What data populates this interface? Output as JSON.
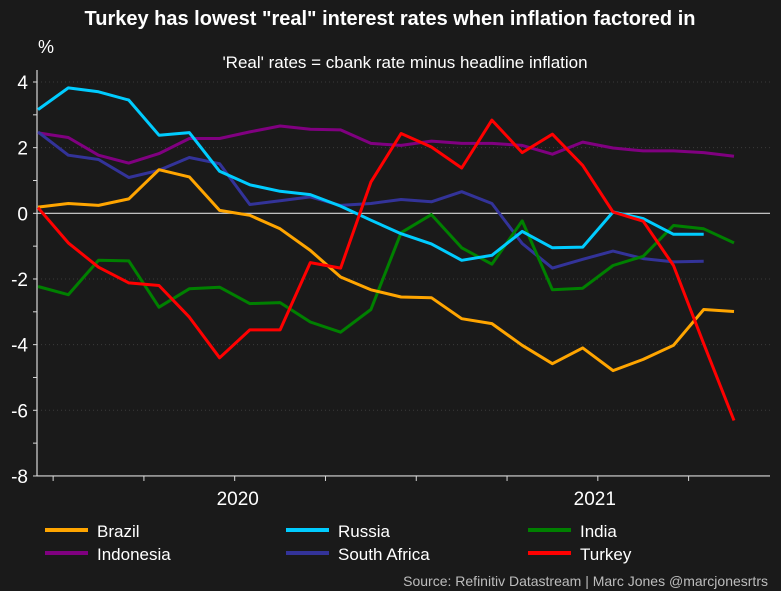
{
  "chart_data": {
    "type": "line",
    "title": "Turkey has lowest \"real\" interest rates when inflation factored in",
    "subtitle": "'Real' rates = cbank rate minus headline inflation",
    "ylabel": "%",
    "xlabel": "",
    "ylim": [
      -8,
      4
    ],
    "yticks": [
      4,
      2,
      0,
      -2,
      -4,
      -6,
      -8
    ],
    "xtick_labels": [
      "2020",
      "2021"
    ],
    "grid": "horizontal dotted",
    "legend_position": "bottom",
    "x": [
      "Jun 2019",
      "Jul 2019",
      "Aug 2019",
      "Sep 2019",
      "Oct 2019",
      "Nov 2019",
      "Dec 2019",
      "Jan 2020",
      "Feb 2020",
      "Mar 2020",
      "Apr 2020",
      "May 2020",
      "Jun 2020",
      "Jul 2020",
      "Aug 2020",
      "Sep 2020",
      "Oct 2020",
      "Nov 2020",
      "Dec 2020",
      "Jan 2021",
      "Feb 2021",
      "Mar 2021",
      "Apr 2021",
      "May 2021"
    ],
    "series": [
      {
        "name": "Brazil",
        "color": "#ffa500",
        "values": [
          0.19,
          0.3,
          0.24,
          0.44,
          1.33,
          1.11,
          0.09,
          -0.06,
          -0.47,
          -1.13,
          -1.94,
          -2.33,
          -2.55,
          -2.57,
          -3.21,
          -3.36,
          -4.02,
          -4.58,
          -4.1,
          -4.79,
          -4.45,
          -4.02,
          -2.93,
          -2.99
        ]
      },
      {
        "name": "Russia",
        "color": "#00ccff",
        "values": [
          3.16,
          3.82,
          3.7,
          3.45,
          2.38,
          2.46,
          1.28,
          0.87,
          0.67,
          0.57,
          0.22,
          -0.21,
          -0.62,
          -0.93,
          -1.43,
          -1.28,
          -0.55,
          -1.05,
          -1.03,
          0.04,
          -0.16,
          -0.64,
          -0.64,
          null
        ]
      },
      {
        "name": "India",
        "color": "#008000",
        "values": [
          -2.23,
          -2.48,
          -1.43,
          -1.45,
          -2.86,
          -2.3,
          -2.25,
          -2.75,
          -2.72,
          -3.31,
          -3.62,
          -2.93,
          -0.59,
          -0.04,
          -1.05,
          -1.55,
          -0.23,
          -2.33,
          -2.28,
          -1.59,
          -1.31,
          -0.37,
          -0.47,
          -0.9
        ]
      },
      {
        "name": "Indonesia",
        "color": "#800080",
        "values": [
          2.45,
          2.31,
          1.77,
          1.53,
          1.82,
          2.28,
          2.28,
          2.48,
          2.66,
          2.56,
          2.54,
          2.13,
          2.07,
          2.2,
          2.13,
          2.13,
          2.07,
          1.8,
          2.17,
          1.99,
          1.9,
          1.9,
          1.85,
          1.74
        ]
      },
      {
        "name": "South Africa",
        "color": "#333399",
        "values": [
          2.48,
          1.77,
          1.64,
          1.09,
          1.31,
          1.7,
          1.51,
          0.27,
          0.38,
          0.5,
          0.24,
          0.3,
          0.42,
          0.35,
          0.66,
          0.3,
          -0.92,
          -1.67,
          -1.4,
          -1.15,
          -1.38,
          -1.48,
          -1.46,
          null
        ]
      },
      {
        "name": "Turkey",
        "color": "#ff0000",
        "values": [
          0.17,
          -0.9,
          -1.64,
          -2.12,
          -2.2,
          -3.16,
          -4.4,
          -3.55,
          -3.55,
          -1.5,
          -1.67,
          0.95,
          2.43,
          2.02,
          1.38,
          2.84,
          1.85,
          2.41,
          1.46,
          0.04,
          -0.24,
          -1.59,
          -3.97,
          -6.31
        ]
      }
    ]
  },
  "source": "Source: Refinitiv Datastream | Marc Jones @marcjonesrtrs"
}
